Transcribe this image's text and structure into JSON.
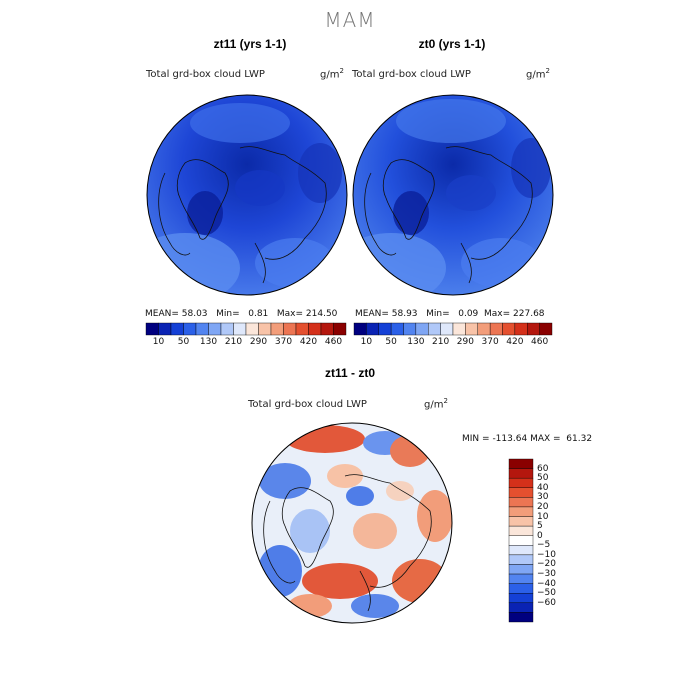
{
  "title": "MAM",
  "panels": [
    {
      "title": "zt11 (yrs 1-1)",
      "variable": "Total grd-box cloud LWP",
      "units_base": "g/m",
      "units_exp": "2",
      "mean_label": "MEAN=",
      "mean": "58.03",
      "min_label": "Min=",
      "min": "0.81",
      "max_label": "Max=",
      "max": "214.50"
    },
    {
      "title": "zt0 (yrs 1-1)",
      "variable": "Total grd-box cloud LWP",
      "units_base": "g/m",
      "units_exp": "2",
      "mean_label": "MEAN=",
      "mean": "58.93",
      "min_label": "Min=",
      "min": "0.09",
      "max_label": "Max=",
      "max": "227.68"
    }
  ],
  "colorbar_main": {
    "tick_labels": [
      "10",
      "50",
      "130",
      "210",
      "290",
      "370",
      "420",
      "460"
    ],
    "colors": [
      "#00007f",
      "#0a23b4",
      "#1440d6",
      "#2b60e8",
      "#5284f0",
      "#7fa6f4",
      "#b0c8f8",
      "#dfe8fb",
      "#fbe6da",
      "#f8c3a8",
      "#f29d7a",
      "#ec7553",
      "#e4502f",
      "#d4301a",
      "#b4170e",
      "#8a0000"
    ]
  },
  "diff_panel": {
    "title": "zt11 - zt0",
    "variable": "Total grd-box cloud LWP",
    "units_base": "g/m",
    "units_exp": "2",
    "min_label": "MIN =",
    "min": "-113.64",
    "max_label": "MAX =",
    "max": "61.32"
  },
  "colorbar_diff": {
    "tick_labels": [
      "60",
      "50",
      "40",
      "30",
      "20",
      "10",
      "5",
      "0",
      "−5",
      "−10",
      "−20",
      "−30",
      "−40",
      "−50",
      "−60"
    ],
    "colors": [
      "#8a0000",
      "#b4170e",
      "#d4301a",
      "#e4502f",
      "#ec7553",
      "#f29d7a",
      "#f8c3a8",
      "#fbe6da",
      "#ffffff",
      "#dfe8fb",
      "#b0c8f8",
      "#7fa6f4",
      "#5284f0",
      "#2b60e8",
      "#1440d6",
      "#0a23b4",
      "#00007f"
    ]
  },
  "map_colors": {
    "field_high": "#1e46d6",
    "field_mid": "#2f5fe6",
    "field_low": "#4f82ee",
    "field_dark": "#0b2aa8",
    "diff_neg": "#5a86ea",
    "diff_neutral": "#e9eff9",
    "diff_pos": "#e2583a",
    "coast": "#111111"
  }
}
